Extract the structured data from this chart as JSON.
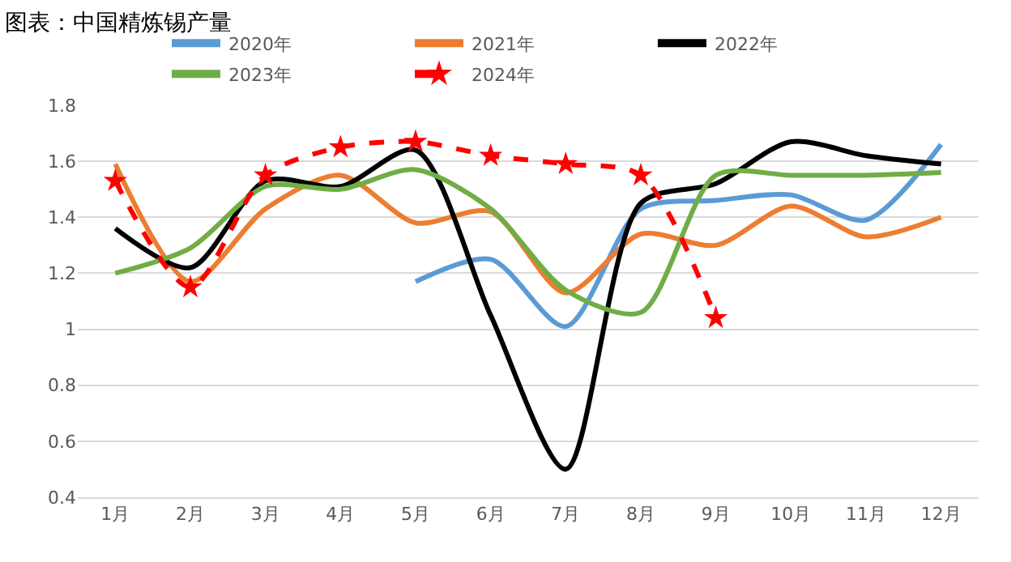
{
  "chart_data": {
    "type": "line",
    "title": "图表：中国精炼锡产量",
    "categories": [
      "1月",
      "2月",
      "3月",
      "4月",
      "5月",
      "6月",
      "7月",
      "8月",
      "9月",
      "10月",
      "11月",
      "12月"
    ],
    "series": [
      {
        "name": "2020年",
        "color": "#5b9bd5",
        "values": [
          null,
          null,
          null,
          null,
          1.17,
          1.25,
          1.01,
          1.43,
          1.46,
          1.48,
          1.39,
          1.66
        ]
      },
      {
        "name": "2021年",
        "color": "#ed7d31",
        "values": [
          1.59,
          1.17,
          1.43,
          1.55,
          1.38,
          1.42,
          1.13,
          1.34,
          1.3,
          1.44,
          1.33,
          1.4
        ]
      },
      {
        "name": "2022年",
        "color": "#000000",
        "values": [
          1.36,
          1.22,
          1.53,
          1.51,
          1.64,
          1.05,
          0.5,
          1.45,
          1.52,
          1.67,
          1.62,
          1.59
        ]
      },
      {
        "name": "2023年",
        "color": "#70ad47",
        "values": [
          1.2,
          1.29,
          1.51,
          1.5,
          1.57,
          1.43,
          1.14,
          1.06,
          1.55,
          1.55,
          1.55,
          1.56
        ]
      },
      {
        "name": "2024年",
        "color": "#ff0000",
        "values": [
          1.53,
          1.15,
          1.55,
          1.65,
          1.67,
          1.62,
          1.59,
          1.55,
          1.04,
          null,
          null,
          null
        ],
        "marker": "star",
        "line_style": "dashed"
      }
    ],
    "ylim": [
      0.4,
      1.8
    ],
    "yticks": [
      0.4,
      0.6,
      0.8,
      1,
      1.2,
      1.4,
      1.6,
      1.8
    ],
    "grid": "y",
    "legend": "top",
    "marker": "none",
    "line_style": "solid"
  }
}
